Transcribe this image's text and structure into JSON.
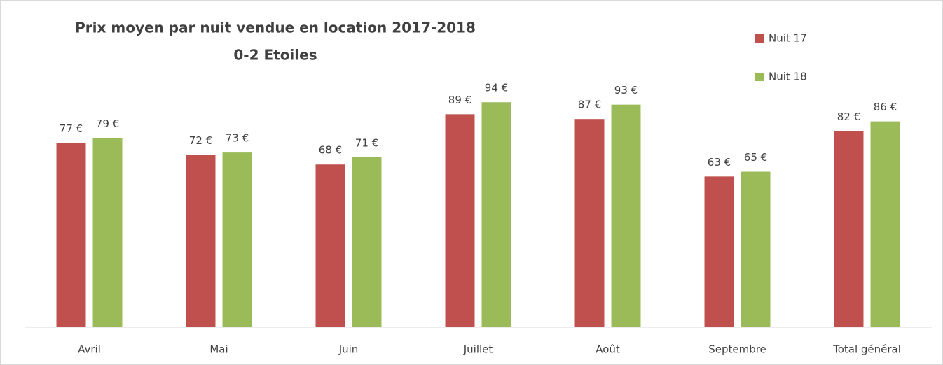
{
  "chart_data": {
    "type": "bar",
    "title": "Prix moyen par nuit vendue en location 2017-2018",
    "subtitle": "0-2 Etoiles",
    "categories": [
      "Avril",
      "Mai",
      "Juin",
      "Juillet",
      "Août",
      "Septembre",
      "Total général"
    ],
    "series": [
      {
        "name": "Nuit 17",
        "color": "#c0504d",
        "values": [
          77,
          72,
          68,
          89,
          87,
          63,
          82
        ],
        "value_labels": [
          "77 €",
          "72 €",
          "68 €",
          "89 €",
          "87 €",
          "63 €",
          "82 €"
        ]
      },
      {
        "name": "Nuit 18",
        "color": "#9bbb59",
        "values": [
          79,
          73,
          71,
          94,
          93,
          65,
          86
        ],
        "value_labels": [
          "79 €",
          "73 €",
          "71 €",
          "94 €",
          "93 €",
          "65 €",
          "86 €"
        ]
      }
    ],
    "ylim": [
      0,
      130
    ],
    "legend": "top-right",
    "grid": false
  }
}
